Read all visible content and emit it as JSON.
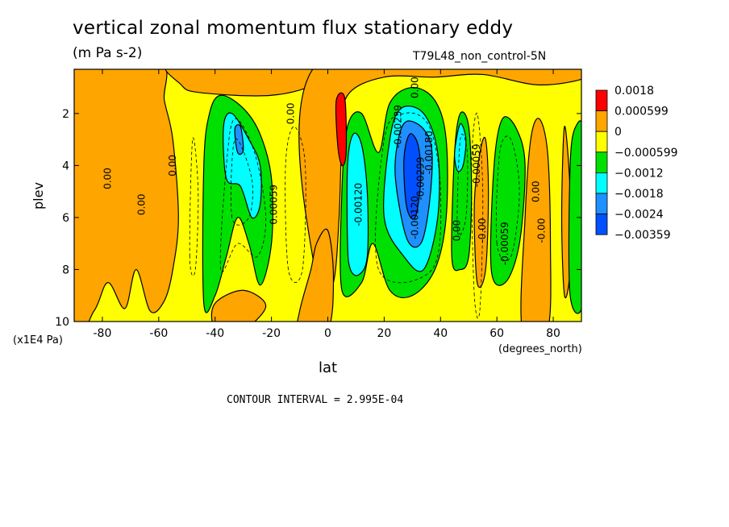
{
  "chart_data": {
    "type": "heatmap",
    "title": "vertical zonal momentum flux stationary eddy",
    "units": "(m Pa s-2)",
    "experiment": "T79L48_non_control-5N",
    "xlabel": "lat",
    "xunit": "(degrees_north)",
    "ylabel": "plev",
    "yunit": "(x1E4 Pa)",
    "xlim": [
      -90,
      90
    ],
    "ylim": [
      0.3,
      10
    ],
    "y_inverted": true,
    "x_ticks": [
      "-80",
      "-60",
      "-40",
      "-20",
      "0",
      "20",
      "40",
      "60",
      "80"
    ],
    "y_ticks": [
      "2",
      "4",
      "6",
      "8",
      "10"
    ],
    "contour_interval_text": "CONTOUR INTERVAL = 2.995E-04",
    "colorbar": {
      "levels": [
        "0.0018",
        "0.000599",
        "0",
        "−0.000599",
        "−0.0012",
        "−0.0018",
        "−0.0024",
        "−0.00359"
      ],
      "colors": [
        "#ff0000",
        "#ffa500",
        "#ffff00",
        "#00e000",
        "#00ffff",
        "#1e90ff",
        "#0050ff"
      ]
    },
    "features": [
      {
        "name": "positive band",
        "lat_range": [
          -90,
          -75
        ],
        "plev_range": [
          0.3,
          9.5
        ],
        "level": "0 to 0.000599"
      },
      {
        "name": "positive band",
        "lat_range": [
          -70,
          -50
        ],
        "plev_range": [
          0.3,
          10
        ],
        "level": "0 to 0.000599"
      },
      {
        "name": "negative lobe",
        "lat_range": [
          -45,
          -25
        ],
        "plev_range": [
          1.5,
          8.5
        ],
        "min_value": -0.0018
      },
      {
        "name": "positive maximum",
        "lat": 5,
        "plev": 2.5,
        "max_value": 0.0018
      },
      {
        "name": "negative lobe",
        "lat_range": [
          5,
          20
        ],
        "plev_range": [
          2.5,
          8.5
        ],
        "min_value": -0.0018
      },
      {
        "name": "negative minimum",
        "lat": 30,
        "plev": 4,
        "min_value": -0.00359
      },
      {
        "name": "negative lobe",
        "lat_range": [
          45,
          52
        ],
        "plev_range": [
          2,
          7.5
        ],
        "min_value": -0.0018
      },
      {
        "name": "negative lobe",
        "lat_range": [
          58,
          70
        ],
        "plev_range": [
          2,
          8
        ],
        "min_value": -0.0012
      },
      {
        "name": "positive band",
        "lat_range": [
          70,
          80
        ],
        "plev_range": [
          2.5,
          10
        ],
        "level": "0 to 0.000599"
      }
    ],
    "contour_labels": [
      {
        "text": "0.00",
        "lat": -77,
        "plev": 4.5
      },
      {
        "text": "0.00",
        "lat": -65,
        "plev": 5.5
      },
      {
        "text": "0.00",
        "lat": -54,
        "plev": 4
      },
      {
        "text": "0.00",
        "lat": -12,
        "plev": 2
      },
      {
        "text": "0.00059",
        "lat": -18,
        "plev": 5.5
      },
      {
        "text": "-0.00120",
        "lat": 12,
        "plev": 5.5
      },
      {
        "text": "0.00",
        "lat": 32,
        "plev": 1
      },
      {
        "text": "-0.00239",
        "lat": 26,
        "plev": 2.5
      },
      {
        "text": "-0.00180",
        "lat": 37,
        "plev": 3.5
      },
      {
        "text": "-0.00299",
        "lat": 34,
        "plev": 4.5
      },
      {
        "text": "-0.00120",
        "lat": 32,
        "plev": 6
      },
      {
        "text": "0.00",
        "lat": 47,
        "plev": 6.5
      },
      {
        "text": "-0.00059",
        "lat": 54,
        "plev": 4
      },
      {
        "text": "-0.00",
        "lat": 56,
        "plev": 6.5
      },
      {
        "text": "-0.00059",
        "lat": 64,
        "plev": 7
      },
      {
        "text": "0.00",
        "lat": 75,
        "plev": 5
      },
      {
        "text": "-0.00",
        "lat": 77,
        "plev": 6.5
      }
    ]
  }
}
